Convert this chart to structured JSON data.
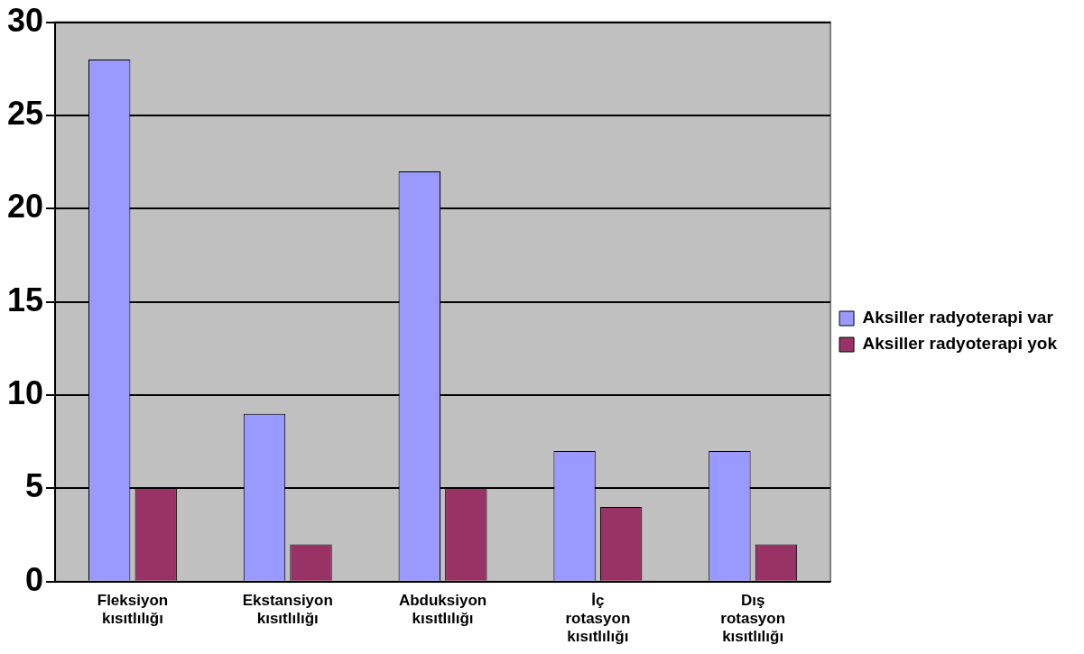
{
  "chart_data": {
    "type": "bar",
    "categories": [
      "Fleksiyon kısıtlılığı",
      "Ekstansiyon kısıtlılığı",
      "Abduksiyon kısıtlılığı",
      "İç rotasyon kısıtlılığı",
      "Dış rotasyon kısıtlılığı"
    ],
    "series": [
      {
        "name": "Aksiller radyoterapi var",
        "color": "#9999ff",
        "values": [
          28,
          9,
          22,
          7,
          7
        ]
      },
      {
        "name": "Aksiller radyoterapi yok",
        "color": "#993366",
        "values": [
          5,
          2,
          5,
          4,
          2
        ]
      }
    ],
    "ylim": [
      0,
      30
    ],
    "yticks": [
      0,
      5,
      10,
      15,
      20,
      25,
      30
    ],
    "grid": "y",
    "legend": "right"
  }
}
